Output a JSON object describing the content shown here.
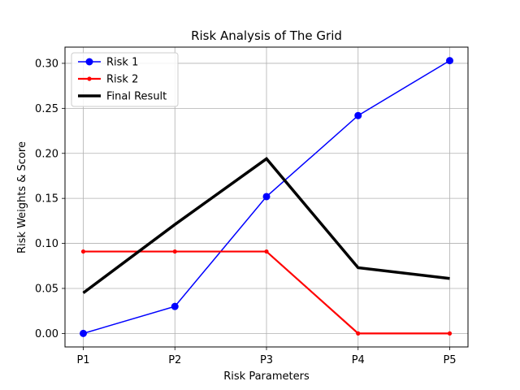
{
  "chart_data": {
    "type": "line",
    "title": "Risk Analysis of The Grid",
    "xlabel": "Risk Parameters",
    "ylabel": "Risk Weights & Score",
    "categories": [
      "P1",
      "P2",
      "P3",
      "P4",
      "P5"
    ],
    "yticks": [
      0.0,
      0.05,
      0.1,
      0.15,
      0.2,
      0.25,
      0.3
    ],
    "ytick_labels": [
      "0.00",
      "0.05",
      "0.10",
      "0.15",
      "0.20",
      "0.25",
      "0.30"
    ],
    "ylim": [
      -0.015,
      0.318
    ],
    "grid": true,
    "legend_position": "top-left",
    "series": [
      {
        "name": "Risk 1",
        "values": [
          0.0,
          0.03,
          0.152,
          0.242,
          0.303
        ],
        "color": "#0000ff",
        "marker": "circle"
      },
      {
        "name": "Risk 2",
        "values": [
          0.091,
          0.091,
          0.091,
          0.0,
          0.0
        ],
        "color": "#ff0000",
        "marker": "point"
      },
      {
        "name": "Final Result",
        "values": [
          0.045,
          0.121,
          0.194,
          0.073,
          0.061
        ],
        "color": "#000000",
        "marker": "none"
      }
    ]
  }
}
